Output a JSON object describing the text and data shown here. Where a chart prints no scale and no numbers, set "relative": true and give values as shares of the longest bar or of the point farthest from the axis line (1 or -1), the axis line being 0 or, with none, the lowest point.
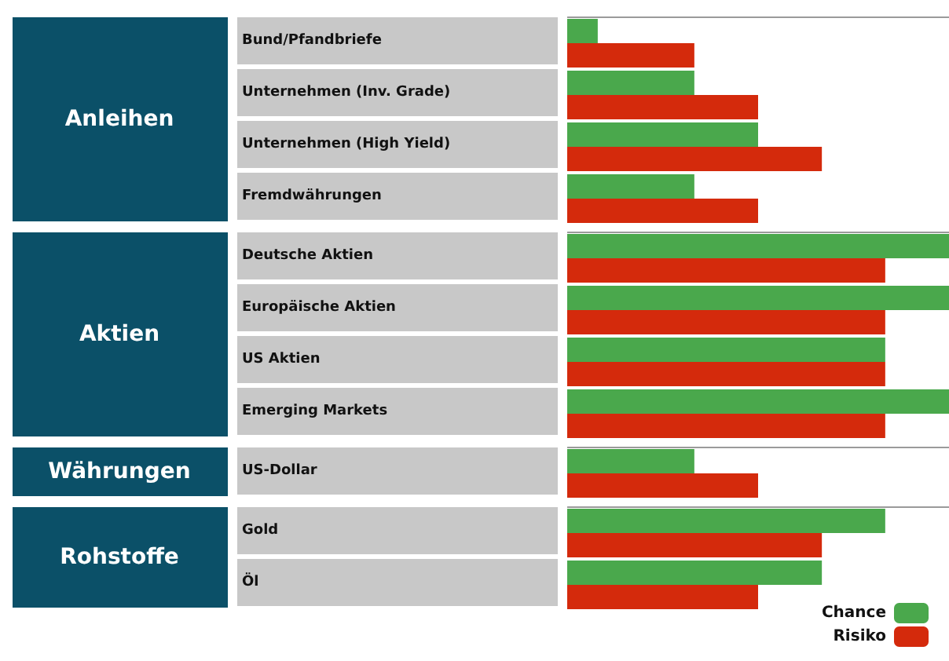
{
  "chart_data": {
    "type": "bar",
    "orientation": "horizontal",
    "relative": true,
    "legend": "bottom right",
    "categories": [
      "Bund/Pfandbriefe",
      "Unternehmen (Inv. Grade)",
      "Unternehmen (High Yield)",
      "Fremdwährungen",
      "Deutsche Aktien",
      "Europäische Aktien",
      "US Aktien",
      "Emerging Markets",
      "US-Dollar",
      "Gold",
      "Öl"
    ],
    "series": [
      {
        "name": "Chance",
        "color": "#4aa84c",
        "values": [
          0.08,
          0.333,
          0.5,
          0.333,
          1,
          1,
          0.833,
          1,
          0.333,
          0.833,
          0.667
        ]
      },
      {
        "name": "Risiko",
        "color": "#d42a0c",
        "values": [
          0.333,
          0.5,
          0.667,
          0.5,
          0.833,
          0.833,
          0.833,
          0.833,
          0.5,
          0.667,
          0.5
        ]
      }
    ],
    "annotations": [
      "Anleihen",
      "Aktien",
      "Währungen",
      "Rohstoffe"
    ]
  }
}
